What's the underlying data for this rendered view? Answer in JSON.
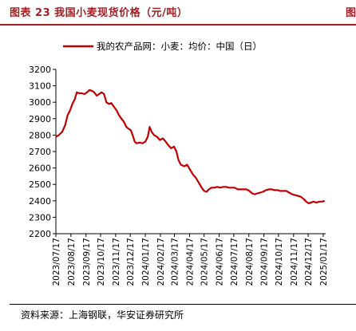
{
  "header": {
    "title": "图表 23 我国小麦现货价格（元/吨）",
    "corner_glyph": "图"
  },
  "footer": {
    "source": "资料来源：上海钢联，华安证券研究所"
  },
  "colors": {
    "accent": "#a31f24",
    "series": "#c00000",
    "axis": "#000000"
  },
  "chart_data": {
    "type": "line",
    "title": "",
    "xlabel": "",
    "ylabel": "",
    "ylim": [
      2200,
      3200
    ],
    "yticks": [
      2200,
      2300,
      2400,
      2500,
      2600,
      2700,
      2800,
      2900,
      3000,
      3100,
      3200
    ],
    "xlim": [
      "2023-07-17",
      "2025-01-22"
    ],
    "xticks": [
      "2023/07/17",
      "2023/08/17",
      "2023/09/17",
      "2023/10/17",
      "2023/11/17",
      "2023/12/17",
      "2024/01/17",
      "2024/02/17",
      "2024/03/17",
      "2024/04/17",
      "2024/05/17",
      "2024/06/17",
      "2024/07/17",
      "2024/08/17",
      "2024/09/17",
      "2024/10/17",
      "2024/11/17",
      "2024/12/17",
      "2025/01/17"
    ],
    "legend_position": "top",
    "grid": false,
    "series": [
      {
        "name": "我的农产品网：小麦：均价：中国（日）",
        "points": [
          [
            "2023-07-17",
            2790
          ],
          [
            "2023-07-23",
            2800
          ],
          [
            "2023-07-30",
            2820
          ],
          [
            "2023-08-05",
            2860
          ],
          [
            "2023-08-10",
            2920
          ],
          [
            "2023-08-15",
            2950
          ],
          [
            "2023-08-20",
            2990
          ],
          [
            "2023-08-25",
            3020
          ],
          [
            "2023-08-29",
            3060
          ],
          [
            "2023-09-03",
            3055
          ],
          [
            "2023-09-08",
            3055
          ],
          [
            "2023-09-14",
            3050
          ],
          [
            "2023-09-19",
            3060
          ],
          [
            "2023-09-24",
            3075
          ],
          [
            "2023-09-29",
            3070
          ],
          [
            "2023-10-04",
            3060
          ],
          [
            "2023-10-09",
            3040
          ],
          [
            "2023-10-14",
            3050
          ],
          [
            "2023-10-19",
            3060
          ],
          [
            "2023-10-24",
            3050
          ],
          [
            "2023-10-29",
            3000
          ],
          [
            "2023-11-03",
            2990
          ],
          [
            "2023-11-08",
            2995
          ],
          [
            "2023-11-14",
            2970
          ],
          [
            "2023-11-19",
            2950
          ],
          [
            "2023-11-24",
            2920
          ],
          [
            "2023-11-29",
            2900
          ],
          [
            "2023-12-04",
            2880
          ],
          [
            "2023-12-09",
            2850
          ],
          [
            "2023-12-13",
            2840
          ],
          [
            "2023-12-18",
            2830
          ],
          [
            "2023-12-22",
            2800
          ],
          [
            "2023-12-26",
            2760
          ],
          [
            "2023-12-30",
            2750
          ],
          [
            "2024-01-05",
            2755
          ],
          [
            "2024-01-11",
            2750
          ],
          [
            "2024-01-17",
            2760
          ],
          [
            "2024-01-22",
            2790
          ],
          [
            "2024-01-26",
            2850
          ],
          [
            "2024-01-30",
            2820
          ],
          [
            "2024-02-04",
            2800
          ],
          [
            "2024-02-10",
            2790
          ],
          [
            "2024-02-16",
            2770
          ],
          [
            "2024-02-22",
            2780
          ],
          [
            "2024-02-28",
            2760
          ],
          [
            "2024-03-04",
            2740
          ],
          [
            "2024-03-10",
            2720
          ],
          [
            "2024-03-16",
            2730
          ],
          [
            "2024-03-21",
            2700
          ],
          [
            "2024-03-25",
            2650
          ],
          [
            "2024-03-30",
            2620
          ],
          [
            "2024-04-06",
            2610
          ],
          [
            "2024-04-12",
            2620
          ],
          [
            "2024-04-18",
            2590
          ],
          [
            "2024-04-24",
            2560
          ],
          [
            "2024-04-30",
            2540
          ],
          [
            "2024-05-06",
            2510
          ],
          [
            "2024-05-12",
            2480
          ],
          [
            "2024-05-17",
            2460
          ],
          [
            "2024-05-22",
            2455
          ],
          [
            "2024-05-27",
            2470
          ],
          [
            "2024-06-01",
            2480
          ],
          [
            "2024-06-07",
            2480
          ],
          [
            "2024-06-13",
            2485
          ],
          [
            "2024-06-19",
            2480
          ],
          [
            "2024-06-25",
            2485
          ],
          [
            "2024-07-01",
            2485
          ],
          [
            "2024-07-07",
            2480
          ],
          [
            "2024-07-13",
            2480
          ],
          [
            "2024-07-19",
            2480
          ],
          [
            "2024-07-25",
            2470
          ],
          [
            "2024-07-31",
            2470
          ],
          [
            "2024-08-06",
            2470
          ],
          [
            "2024-08-12",
            2470
          ],
          [
            "2024-08-18",
            2460
          ],
          [
            "2024-08-24",
            2445
          ],
          [
            "2024-08-29",
            2440
          ],
          [
            "2024-09-03",
            2445
          ],
          [
            "2024-09-09",
            2450
          ],
          [
            "2024-09-15",
            2455
          ],
          [
            "2024-09-21",
            2465
          ],
          [
            "2024-09-27",
            2470
          ],
          [
            "2024-10-03",
            2470
          ],
          [
            "2024-10-09",
            2465
          ],
          [
            "2024-10-15",
            2465
          ],
          [
            "2024-10-21",
            2460
          ],
          [
            "2024-10-27",
            2460
          ],
          [
            "2024-11-02",
            2460
          ],
          [
            "2024-11-08",
            2450
          ],
          [
            "2024-11-14",
            2440
          ],
          [
            "2024-11-20",
            2435
          ],
          [
            "2024-11-26",
            2430
          ],
          [
            "2024-12-02",
            2425
          ],
          [
            "2024-12-08",
            2410
          ],
          [
            "2024-12-13",
            2395
          ],
          [
            "2024-12-18",
            2385
          ],
          [
            "2024-12-23",
            2390
          ],
          [
            "2024-12-28",
            2395
          ],
          [
            "2025-01-03",
            2390
          ],
          [
            "2025-01-09",
            2395
          ],
          [
            "2025-01-15",
            2395
          ],
          [
            "2025-01-20",
            2400
          ]
        ]
      }
    ]
  }
}
